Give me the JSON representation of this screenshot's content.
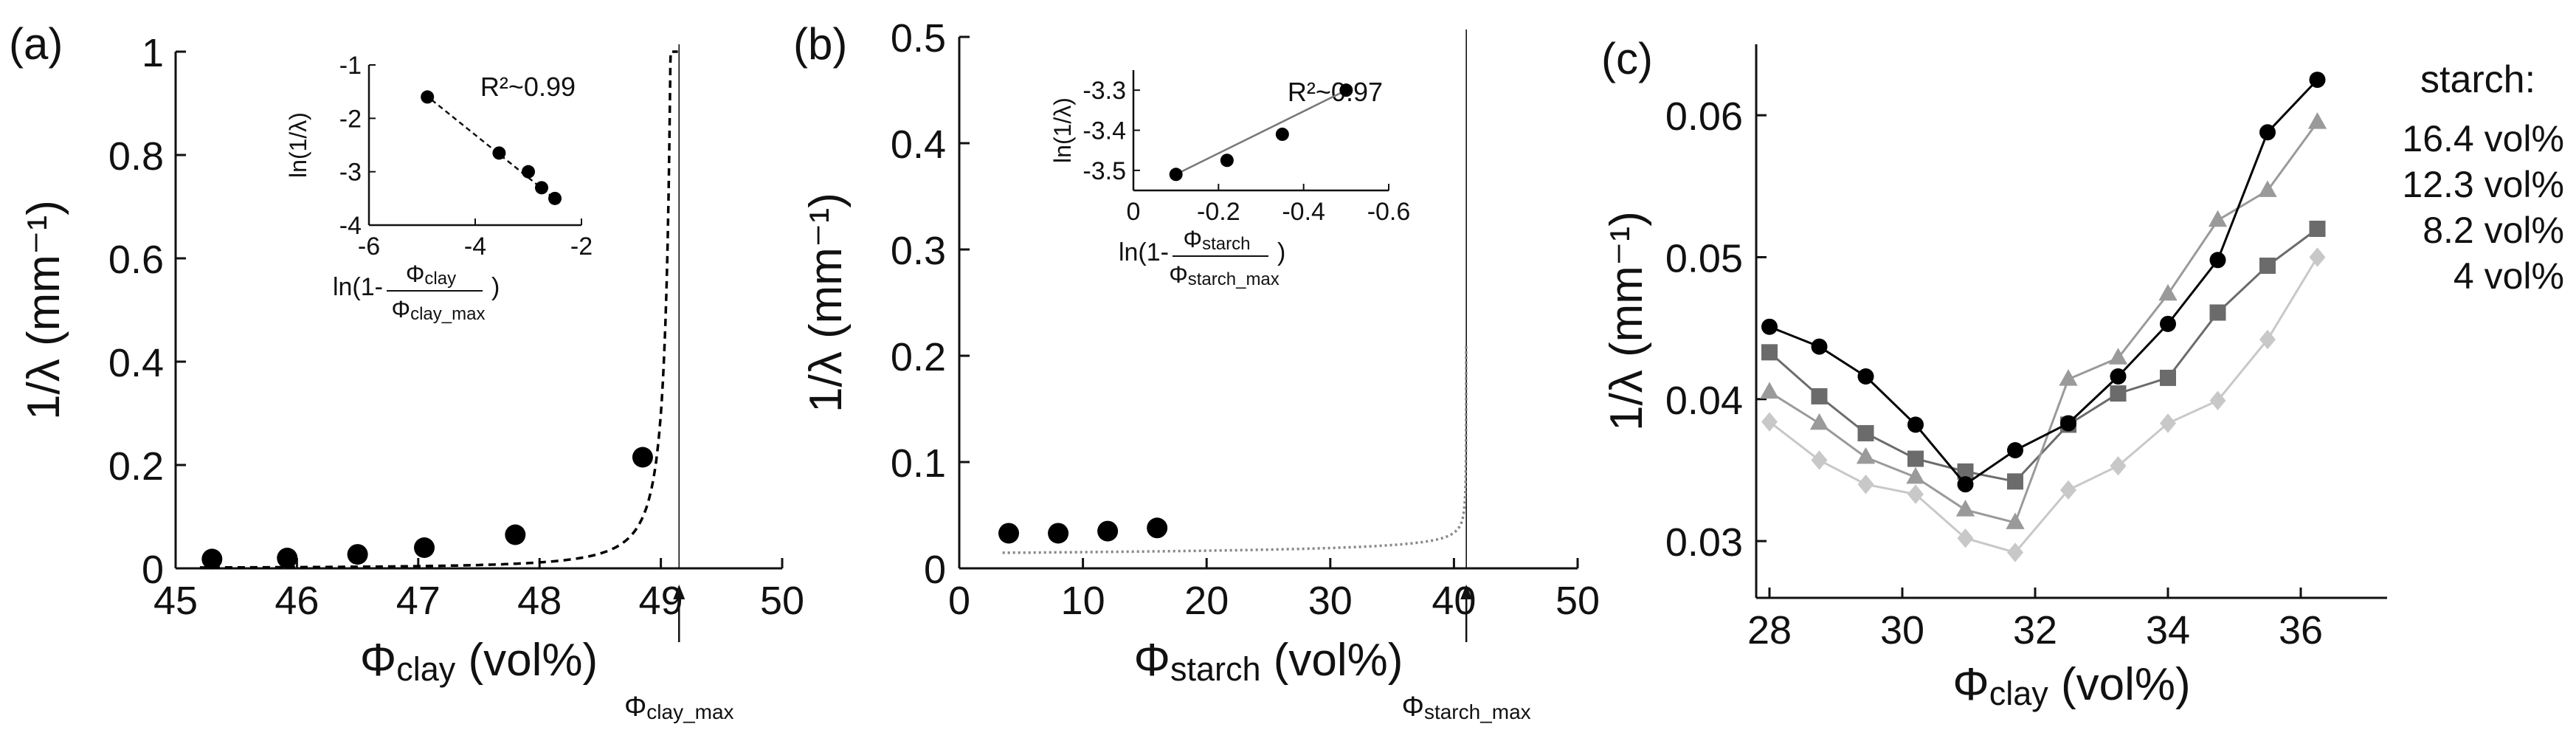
{
  "chart_data": [
    {
      "id": "a",
      "panel_label": "(a)",
      "type": "scatter",
      "x_label": {
        "symbol": "Φ",
        "sub": "clay",
        "unit": " (vol%)"
      },
      "y_label": "1/λ (mm⁻¹)",
      "xlim": [
        45,
        50
      ],
      "ylim": [
        0,
        1
      ],
      "x_ticks": [
        "45",
        "46",
        "47",
        "48",
        "49",
        "50"
      ],
      "y_ticks": [
        "0",
        "0.2",
        "0.4",
        "0.6",
        "0.8",
        "1"
      ],
      "marker": {
        "symbol": "Φ",
        "sub": "clay_max"
      },
      "vline_x": 49.15,
      "series": [
        {
          "name": "data",
          "style": "marker",
          "color": "#000000",
          "x": [
            45.3,
            45.92,
            46.5,
            47.05,
            47.8,
            48.85
          ],
          "y": [
            0.018,
            0.02,
            0.027,
            0.04,
            0.065,
            0.215
          ]
        },
        {
          "name": "fit",
          "style": "line",
          "color": "#000000",
          "dash": "10,7"
        }
      ],
      "fit": {
        "kind": "power",
        "xmax": 49.15,
        "A": 0.0144,
        "n": 1.6,
        "x_start": 45.2,
        "x_end": 49.14
      },
      "inset": {
        "xlim": [
          -6,
          -2
        ],
        "ylim": [
          -4,
          -1
        ],
        "x_ticks": [
          "-6",
          "-4",
          "-2"
        ],
        "y_ticks": [
          "-1",
          "-2",
          "-3",
          "-4"
        ],
        "y_label": "ln(1/λ)",
        "x_label": {
          "prefix": "ln(1-",
          "num_sym": "Φ",
          "num_sub": "clay",
          "den_sym": "Φ",
          "den_sub": "clay_max",
          "suffix": ")"
        },
        "annotation": "R²~0.99",
        "x": [
          -4.9,
          -3.55,
          -3.0,
          -2.75,
          -2.5
        ],
        "y": [
          -1.6,
          -2.65,
          -3.0,
          -3.3,
          -3.5
        ],
        "fit_line": {
          "x": [
            -4.95,
            -2.45
          ],
          "y": [
            -1.55,
            -3.55
          ]
        }
      }
    },
    {
      "id": "b",
      "panel_label": "(b)",
      "type": "scatter",
      "x_label": {
        "symbol": "Φ",
        "sub": "starch",
        "unit": " (vol%)"
      },
      "y_label": "1/λ (mm⁻¹)",
      "xlim": [
        0,
        50
      ],
      "ylim": [
        0,
        0.5
      ],
      "x_ticks": [
        "0",
        "10",
        "20",
        "30",
        "40",
        "50"
      ],
      "y_ticks": [
        "0",
        "0.1",
        "0.2",
        "0.3",
        "0.4",
        "0.5"
      ],
      "marker": {
        "symbol": "Φ",
        "sub": "starch_max"
      },
      "vline_x": 41,
      "series": [
        {
          "name": "data",
          "style": "marker",
          "color": "#000000",
          "x": [
            4,
            8,
            12,
            16
          ],
          "y": [
            0.033,
            0.033,
            0.035,
            0.038
          ]
        },
        {
          "name": "fit",
          "style": "line",
          "color": "#888888",
          "dash": "3,4"
        }
      ],
      "fit": {
        "kind": "power",
        "xmax": 41,
        "A": 0.0316,
        "n": 0.2125,
        "x_start": 3.5,
        "x_end": 40.99,
        "extra_scale": 0.002
      },
      "inset": {
        "xlim": [
          0,
          -0.6
        ],
        "ylim": [
          -3.55,
          -3.25
        ],
        "x_ticks": [
          "0",
          "-0.2",
          "-0.4",
          "-0.6"
        ],
        "y_ticks": [
          "-3.5",
          "-3.4",
          "-3.3"
        ],
        "y_label": "ln(1/λ)",
        "x_label": {
          "prefix": "ln(1-",
          "num_sym": "Φ",
          "num_sub": "starch",
          "den_sym": "Φ",
          "den_sub": "starch_max",
          "suffix": ")"
        },
        "annotation": "R²~0.97",
        "x": [
          -0.1,
          -0.22,
          -0.35,
          -0.5
        ],
        "y": [
          -3.51,
          -3.475,
          -3.41,
          -3.3
        ],
        "fit_line": {
          "x": [
            -0.09,
            -0.51
          ],
          "y": [
            -3.515,
            -3.295
          ]
        }
      }
    },
    {
      "id": "c",
      "panel_label": "(c)",
      "type": "line",
      "x_label": {
        "symbol": "Φ",
        "sub": "clay",
        "unit": " (vol%)"
      },
      "y_label": "1/λ (mm⁻¹)",
      "xlim": [
        27.8,
        37.3
      ],
      "ylim": [
        0.026,
        0.065
      ],
      "x_ticks": [
        "28",
        "30",
        "32",
        "34",
        "36"
      ],
      "x_tick_values": [
        28,
        30,
        32,
        34,
        36
      ],
      "y_ticks": [
        "0.03",
        "0.04",
        "0.05",
        "0.06"
      ],
      "y_tick_values": [
        0.03,
        0.04,
        0.05,
        0.06
      ],
      "legend_title": "starch:",
      "x": [
        28,
        28.75,
        29.45,
        30.2,
        30.95,
        31.7,
        32.5,
        33.25,
        34.0,
        34.75,
        35.5,
        36.25
      ],
      "series": [
        {
          "name": "16.4 vol%",
          "marker": "circle",
          "color": "#000000",
          "values": [
            0.0451,
            0.0437,
            0.0416,
            0.0382,
            0.034,
            0.0364,
            0.0383,
            0.0416,
            0.0453,
            0.0498,
            0.0588,
            0.0625
          ]
        },
        {
          "name": "12.3 vol%",
          "marker": "triangle",
          "color": "#9a9a9a",
          "values": [
            0.0405,
            0.0383,
            0.0359,
            0.0345,
            0.0322,
            0.0313,
            0.0414,
            0.0429,
            0.0474,
            0.0526,
            0.0547,
            0.0595
          ]
        },
        {
          "name": "8.2 vol%",
          "marker": "square",
          "color": "#6b6b6b",
          "values": [
            0.0433,
            0.0402,
            0.0376,
            0.0358,
            0.0349,
            0.0342,
            0.0382,
            0.0404,
            0.0415,
            0.0461,
            0.0494,
            0.052
          ]
        },
        {
          "name": "4 vol%",
          "marker": "diamond",
          "color": "#c8c8c8",
          "values": [
            0.0384,
            0.0357,
            0.034,
            0.0333,
            0.0302,
            0.0292,
            0.0336,
            0.0353,
            0.0383,
            0.0399,
            0.0442,
            0.05
          ]
        }
      ]
    }
  ]
}
